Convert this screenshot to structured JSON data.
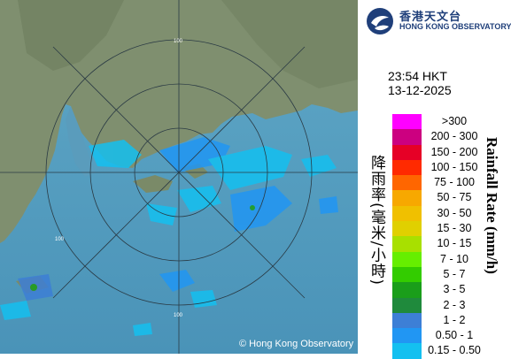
{
  "header": {
    "logo_chinese": "香港天文台",
    "logo_english": "HONG KONG OBSERVATORY"
  },
  "timestamp": {
    "time": "23:54 HKT",
    "date": "13-12-2025"
  },
  "legend": {
    "title_chinese": "降雨率(毫米/小時)",
    "title_english": "Rainfall Rate (mm/h)",
    "items": [
      {
        "label": ">300",
        "color": "#ff00ff"
      },
      {
        "label": "200 - 300",
        "color": "#cc0080"
      },
      {
        "label": "150 - 200",
        "color": "#e60026"
      },
      {
        "label": "100 - 150",
        "color": "#ff2a00"
      },
      {
        "label": "75 - 100",
        "color": "#ff6600"
      },
      {
        "label": "50 - 75",
        "color": "#f7a800"
      },
      {
        "label": "30 - 50",
        "color": "#f0c000"
      },
      {
        "label": "15 - 30",
        "color": "#e0d000"
      },
      {
        "label": "10 - 15",
        "color": "#a8e000"
      },
      {
        "label": "7 - 10",
        "color": "#66ee00"
      },
      {
        "label": "5 - 7",
        "color": "#33cc00"
      },
      {
        "label": "3 - 5",
        "color": "#1a9e1a"
      },
      {
        "label": "2 - 3",
        "color": "#1f8a3c"
      },
      {
        "label": "1 - 2",
        "color": "#3d7fd6"
      },
      {
        "label": "0.50 - 1",
        "color": "#2196f3"
      },
      {
        "label": "0.15 - 0.50",
        "color": "#14c0f0"
      }
    ]
  },
  "map": {
    "range_rings": [
      "100",
      "100",
      "100"
    ],
    "copyright": "© Hong Kong Observatory"
  }
}
